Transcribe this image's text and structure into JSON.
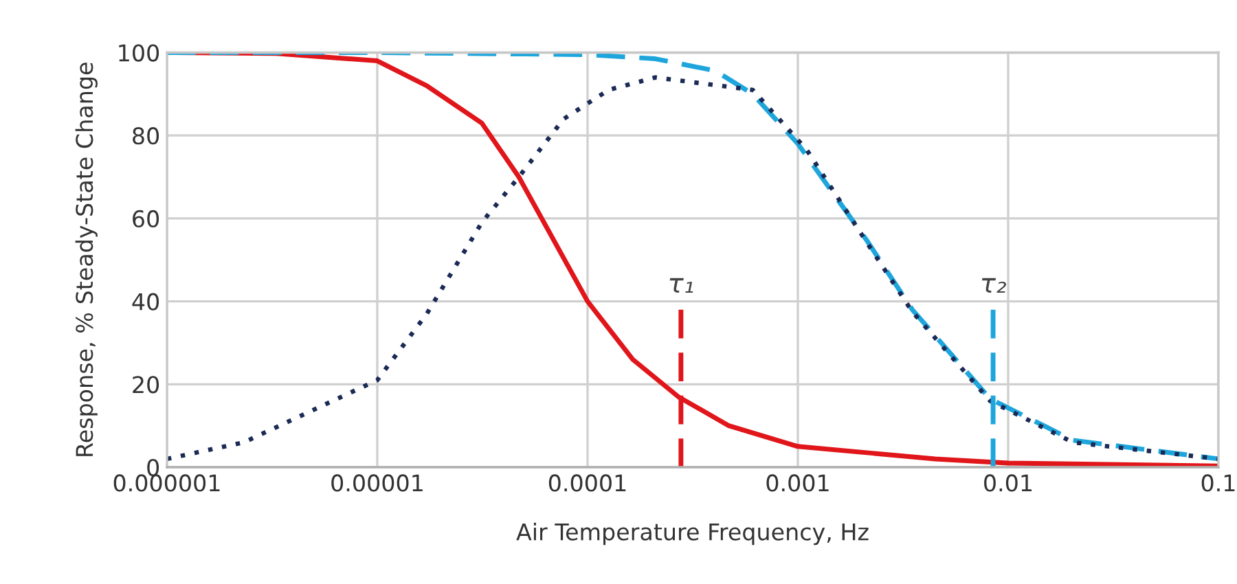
{
  "chart_data": {
    "type": "line",
    "xlabel": "Air Temperature Frequency, Hz",
    "ylabel": "Response, % Steady-State Change",
    "log": "x",
    "grid": true,
    "legend": false,
    "xlim": [
      1e-06,
      0.1
    ],
    "xticks": [
      {
        "value": 1e-06,
        "label": "0.000001"
      },
      {
        "value": 1e-05,
        "label": "0.00001"
      },
      {
        "value": 0.0001,
        "label": "0.0001"
      },
      {
        "value": 0.001,
        "label": "0.001"
      },
      {
        "value": 0.01,
        "label": "0.01"
      },
      {
        "value": 0.1,
        "label": "0.1"
      }
    ],
    "ylim": [
      0,
      100
    ],
    "yticks": [
      0,
      20,
      40,
      60,
      80,
      100
    ],
    "series": [
      {
        "color": "#e0161b",
        "line_style": "solid",
        "x": [
          1e-06,
          3.3e-06,
          1e-05,
          1.72e-05,
          3.14e-05,
          4.71e-05,
          0.0001,
          0.000164,
          0.00027,
          0.00047,
          0.001,
          0.0045,
          0.01,
          0.1
        ],
        "values": [
          100,
          99.8,
          98,
          92,
          83,
          70,
          40,
          26,
          17,
          10,
          5,
          2,
          1,
          0.3
        ]
      },
      {
        "color": "#1ea6dc",
        "line_style": "dashed",
        "x": [
          1e-06,
          1e-05,
          0.0001,
          0.00021,
          0.000405,
          0.00061,
          0.001,
          0.00214,
          0.0035,
          0.0082,
          0.0203,
          0.1
        ],
        "values": [
          100,
          100,
          99.5,
          98.5,
          95.6,
          90,
          78,
          54.5,
          38,
          16.5,
          6.5,
          2
        ]
      },
      {
        "color": "#1b2a55",
        "line_style": "dotted",
        "x": [
          1e-06,
          2.32e-06,
          1e-05,
          1.72e-05,
          3.14e-05,
          4.71e-05,
          7.7e-05,
          0.000126,
          0.00021,
          0.00061,
          0.0011,
          0.00214,
          0.0035,
          0.0082,
          0.0203,
          0.1
        ],
        "values": [
          2,
          6,
          21,
          37,
          59,
          70,
          84,
          91,
          94,
          91,
          76.6,
          54,
          37.5,
          16,
          6,
          2
        ]
      },
      {
        "color": "#e0161b",
        "line_style": "dashed",
        "x": [
          0.000278,
          0.000278
        ],
        "values": [
          0,
          38
        ]
      },
      {
        "color": "#1ea6dc",
        "line_style": "dashed",
        "x": [
          0.00848,
          0.00848
        ],
        "values": [
          0,
          38
        ]
      }
    ],
    "annotations": [
      {
        "text": "τ₁",
        "x": 0.000278,
        "y": 38
      },
      {
        "text": "τ₂",
        "x": 0.00848,
        "y": 38
      }
    ]
  }
}
